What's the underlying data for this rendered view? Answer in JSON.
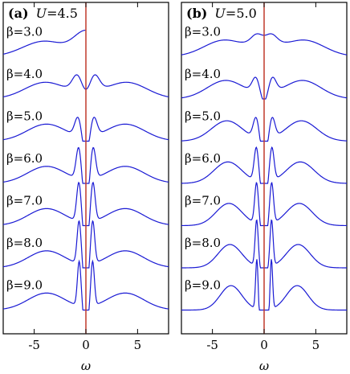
{
  "colors": {
    "curve": "#1a1ad4",
    "zero_line": "#c0392b",
    "frame": "#000000"
  },
  "chart_data": [
    {
      "type": "line",
      "panel_letter": "(a)",
      "panel_param": "U",
      "panel_value": "=4.5",
      "U": 4.5,
      "xlabel": "ω",
      "xlim": [
        -8,
        8
      ],
      "xticks": [
        -5,
        0,
        5
      ],
      "xtick_labels": [
        "-5",
        "0",
        "5"
      ],
      "zero_line_x": 0,
      "series": [
        {
          "name": "β=3.0",
          "beta": 3.0,
          "shape": {
            "side_a": 0.42,
            "side_c": 4.0,
            "side_w": 2.1,
            "center": 0.58,
            "center_w": 1.15,
            "dip": 0.0,
            "dip_w": 0.0,
            "peak_a": 0.0,
            "peak_c": 0.0,
            "peak_w": 0.0
          }
        },
        {
          "name": "β=4.0",
          "beta": 4.0,
          "shape": {
            "side_a": 0.45,
            "side_c": 3.9,
            "side_w": 2.0,
            "center": 0.3,
            "center_w": 1.0,
            "dip": 0.28,
            "dip_w": 0.45,
            "peak_a": 0.32,
            "peak_c": 0.85,
            "peak_w": 0.45
          }
        },
        {
          "name": "β=5.0",
          "beta": 5.0,
          "shape": {
            "side_a": 0.46,
            "side_c": 3.8,
            "side_w": 1.9,
            "center": 0.0,
            "center_w": 1.0,
            "dip": 0.55,
            "dip_w": 0.32,
            "peak_a": 0.52,
            "peak_c": 0.75,
            "peak_w": 0.32
          }
        },
        {
          "name": "β=6.0",
          "beta": 6.0,
          "shape": {
            "side_a": 0.46,
            "side_c": 3.8,
            "side_w": 1.85,
            "center": 0.0,
            "center_w": 1.0,
            "dip": 0.75,
            "dip_w": 0.26,
            "peak_a": 0.85,
            "peak_c": 0.7,
            "peak_w": 0.24
          }
        },
        {
          "name": "β=7.0",
          "beta": 7.0,
          "shape": {
            "side_a": 0.46,
            "side_c": 3.8,
            "side_w": 1.8,
            "center": 0.0,
            "center_w": 1.0,
            "dip": 0.85,
            "dip_w": 0.22,
            "peak_a": 1.05,
            "peak_c": 0.68,
            "peak_w": 0.21
          }
        },
        {
          "name": "β=8.0",
          "beta": 8.0,
          "shape": {
            "side_a": 0.46,
            "side_c": 3.8,
            "side_w": 1.8,
            "center": 0.0,
            "center_w": 1.0,
            "dip": 0.92,
            "dip_w": 0.2,
            "peak_a": 1.15,
            "peak_c": 0.66,
            "peak_w": 0.19
          }
        },
        {
          "name": "β=9.0",
          "beta": 9.0,
          "shape": {
            "side_a": 0.46,
            "side_c": 3.8,
            "side_w": 1.8,
            "center": 0.0,
            "center_w": 1.0,
            "dip": 0.96,
            "dip_w": 0.18,
            "peak_a": 1.2,
            "peak_c": 0.65,
            "peak_w": 0.17
          }
        }
      ]
    },
    {
      "type": "line",
      "panel_letter": "(b)",
      "panel_param": "U",
      "panel_value": "=5.0",
      "U": 5.0,
      "xlabel": "ω",
      "xlim": [
        -8,
        8
      ],
      "xticks": [
        -5,
        0,
        5
      ],
      "xtick_labels": [
        "-5",
        "0",
        "5"
      ],
      "zero_line_x": 0,
      "series": [
        {
          "name": "β=3.0",
          "beta": 3.0,
          "shape": {
            "side_a": 0.45,
            "side_c": 3.8,
            "side_w": 2.0,
            "center": 0.45,
            "center_w": 1.1,
            "dip": 0.06,
            "dip_w": 0.45,
            "peak_a": 0.1,
            "peak_c": 0.8,
            "peak_w": 0.45
          }
        },
        {
          "name": "β=4.0",
          "beta": 4.0,
          "shape": {
            "side_a": 0.5,
            "side_c": 3.7,
            "side_w": 1.8,
            "center": 0.15,
            "center_w": 0.9,
            "dip": 0.38,
            "dip_w": 0.35,
            "peak_a": 0.35,
            "peak_c": 0.8,
            "peak_w": 0.35
          }
        },
        {
          "name": "β=5.0",
          "beta": 5.0,
          "shape": {
            "side_a": 0.55,
            "side_c": 3.6,
            "side_w": 1.5,
            "center": 0.0,
            "center_w": 0.9,
            "dip": 0.6,
            "dip_w": 0.28,
            "peak_a": 0.55,
            "peak_c": 0.78,
            "peak_w": 0.27
          }
        },
        {
          "name": "β=6.0",
          "beta": 6.0,
          "shape": {
            "side_a": 0.58,
            "side_c": 3.5,
            "side_w": 1.35,
            "center": 0.0,
            "center_w": 0.9,
            "dip": 0.8,
            "dip_w": 0.23,
            "peak_a": 0.9,
            "peak_c": 0.75,
            "peak_w": 0.21
          }
        },
        {
          "name": "β=7.0",
          "beta": 7.0,
          "shape": {
            "side_a": 0.6,
            "side_c": 3.4,
            "side_w": 1.25,
            "center": 0.0,
            "center_w": 0.9,
            "dip": 0.92,
            "dip_w": 0.2,
            "peak_a": 1.1,
            "peak_c": 0.73,
            "peak_w": 0.18
          }
        },
        {
          "name": "β=8.0",
          "beta": 8.0,
          "shape": {
            "side_a": 0.63,
            "side_c": 3.3,
            "side_w": 1.15,
            "center": 0.0,
            "center_w": 0.9,
            "dip": 1.0,
            "dip_w": 0.18,
            "peak_a": 1.25,
            "peak_c": 0.72,
            "peak_w": 0.15
          }
        },
        {
          "name": "β=9.0",
          "beta": 9.0,
          "shape": {
            "side_a": 0.66,
            "side_c": 3.2,
            "side_w": 1.05,
            "center": 0.0,
            "center_w": 0.9,
            "dip": 1.0,
            "dip_w": 0.3,
            "peak_a": 1.4,
            "peak_c": 0.7,
            "peak_w": 0.12
          }
        }
      ]
    }
  ]
}
